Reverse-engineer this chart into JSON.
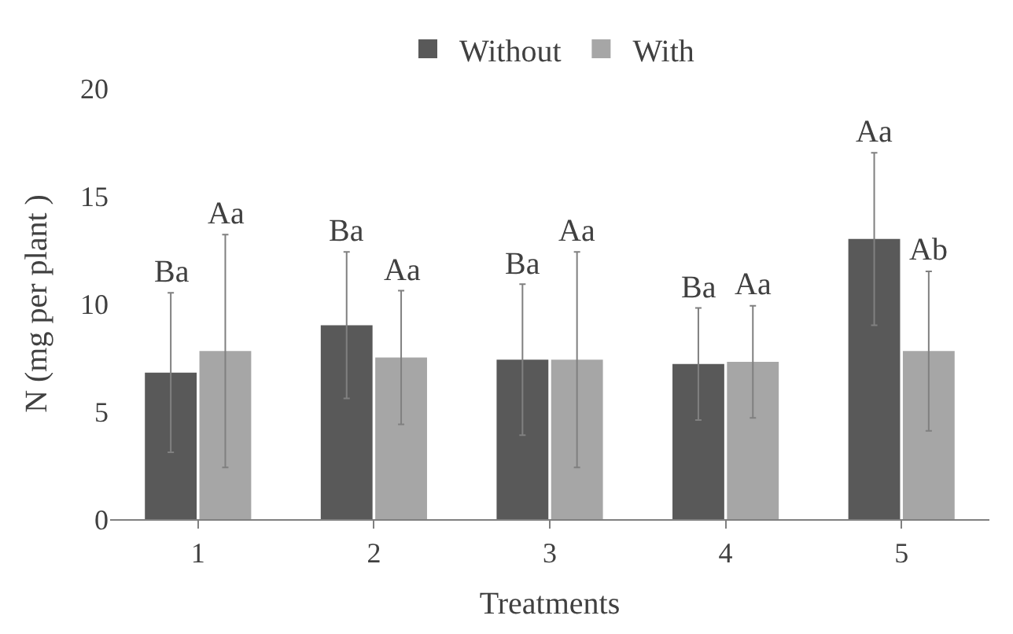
{
  "chart_data": {
    "type": "bar",
    "xlabel": "Treatments",
    "ylabel": "N (mg per plant )",
    "categories": [
      "1",
      "2",
      "3",
      "4",
      "5"
    ],
    "series": [
      {
        "name": "Without",
        "color": "#595959",
        "values": [
          6.8,
          9.0,
          7.4,
          7.2,
          13.0
        ],
        "errors": [
          3.7,
          3.4,
          3.5,
          2.6,
          4.0
        ]
      },
      {
        "name": "With",
        "color": "#a6a6a6",
        "values": [
          7.8,
          7.5,
          7.4,
          7.3,
          7.8
        ],
        "errors": [
          5.4,
          3.1,
          5.0,
          2.6,
          3.7
        ]
      }
    ],
    "ylim": [
      0,
      20
    ],
    "yticks": [
      0,
      5,
      10,
      15,
      20
    ],
    "grid": false,
    "legend": "top",
    "annotations": [
      "Ba",
      "Aa",
      "Ba",
      "Aa",
      "Ba",
      "Aa",
      "Ba",
      "Aa",
      "Aa",
      "Ab"
    ]
  }
}
